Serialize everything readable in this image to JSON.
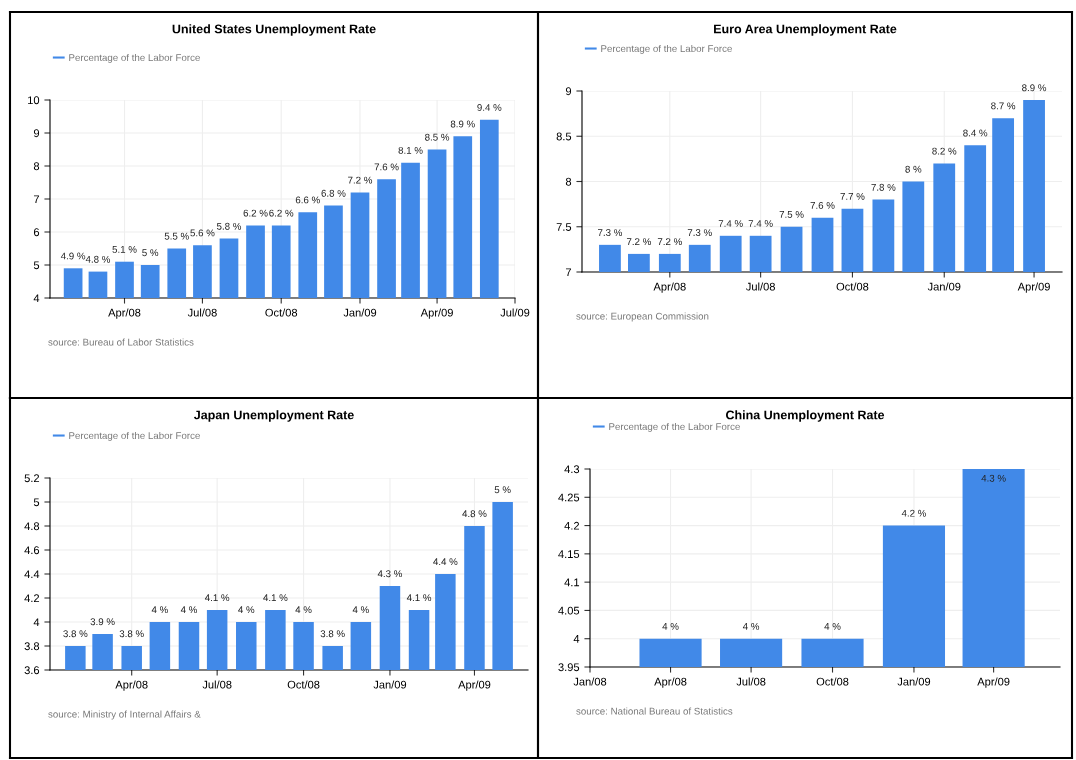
{
  "chart_data": [
    {
      "type": "bar",
      "title": "United States Unemployment Rate",
      "x": [
        "2008-02",
        "2008-03",
        "2008-04",
        "2008-05",
        "2008-06",
        "2008-07",
        "2008-08",
        "2008-09",
        "2008-10",
        "2008-11",
        "2008-12",
        "2009-01",
        "2009-02",
        "2009-03",
        "2009-04",
        "2009-05",
        "2009-06"
      ],
      "series": [
        {
          "name": "Percentage of the Labor Force",
          "color": "#4189e8",
          "values": [
            4.9,
            4.8,
            5.1,
            5,
            5.5,
            5.6,
            5.8,
            6.2,
            6.2,
            6.6,
            6.8,
            7.2,
            7.6,
            8.1,
            8.5,
            8.9,
            9.4
          ],
          "value_labels": [
            "4.9 %",
            "4.8 %",
            "5.1 %",
            "5 %",
            "5.5 %",
            "5.6 %",
            "5.8 %",
            "6.2 %",
            "6.2 %",
            "6.6 %",
            "6.8 %",
            "7.2 %",
            "7.6 %",
            "8.1 %",
            "8.5 %",
            "8.9 %",
            "9.4 %"
          ]
        }
      ],
      "xlim": [
        "2008-01-05",
        "2009-07-01"
      ],
      "xticks": [
        {
          "value": "2008-04",
          "label": "Apr/08"
        },
        {
          "value": "2008-07",
          "label": "Jul/08"
        },
        {
          "value": "2008-10",
          "label": "Oct/08"
        },
        {
          "value": "2009-01",
          "label": "Jan/09"
        },
        {
          "value": "2009-04",
          "label": "Apr/09"
        },
        {
          "value": "2009-07",
          "label": "Jul/09"
        }
      ],
      "ylim": [
        4,
        10
      ],
      "yticks": [
        4,
        5,
        6,
        7,
        8,
        9,
        10
      ],
      "grid": true,
      "legend": "top left",
      "annotations": [
        "source: Bureau of Labor Statistics"
      ]
    },
    {
      "type": "bar",
      "title": "Euro Area Unemployment Rate",
      "x": [
        "2008-02",
        "2008-03",
        "2008-04",
        "2008-05",
        "2008-06",
        "2008-07",
        "2008-08",
        "2008-09",
        "2008-10",
        "2008-11",
        "2008-12",
        "2009-01",
        "2009-02",
        "2009-03",
        "2009-04"
      ],
      "series": [
        {
          "name": "Percentage of the Labor Force",
          "color": "#4189e8",
          "values": [
            7.3,
            7.2,
            7.2,
            7.3,
            7.4,
            7.4,
            7.5,
            7.6,
            7.7,
            7.8,
            8,
            8.2,
            8.4,
            8.7,
            8.9
          ],
          "value_labels": [
            "7.3 %",
            "7.2 %",
            "7.2 %",
            "7.3 %",
            "7.4 %",
            "7.4 %",
            "7.5 %",
            "7.6 %",
            "7.7 %",
            "7.8 %",
            "8 %",
            "8.2 %",
            "8.4 %",
            "8.7 %",
            "8.9 %"
          ]
        }
      ],
      "xlim": [
        "2008-01-04",
        "2009-04-29"
      ],
      "xticks": [
        {
          "value": "2008-04",
          "label": "Apr/08"
        },
        {
          "value": "2008-07",
          "label": "Jul/08"
        },
        {
          "value": "2008-10",
          "label": "Oct/08"
        },
        {
          "value": "2009-01",
          "label": "Jan/09"
        },
        {
          "value": "2009-04",
          "label": "Apr/09"
        }
      ],
      "ylim": [
        7,
        9
      ],
      "yticks": [
        7,
        7.5,
        8,
        8.5,
        9
      ],
      "grid": true,
      "legend": "top left",
      "annotations": [
        "source: European Commission"
      ]
    },
    {
      "type": "bar",
      "title": "Japan Unemployment Rate",
      "x": [
        "2008-02",
        "2008-03",
        "2008-04",
        "2008-05",
        "2008-06",
        "2008-07",
        "2008-08",
        "2008-09",
        "2008-10",
        "2008-11",
        "2008-12",
        "2009-01",
        "2009-02",
        "2009-03",
        "2009-04",
        "2009-05"
      ],
      "series": [
        {
          "name": "Percentage of the Labor Force",
          "color": "#4189e8",
          "values": [
            3.8,
            3.9,
            3.8,
            4,
            4,
            4.1,
            4,
            4.1,
            4,
            3.8,
            4,
            4.3,
            4.1,
            4.4,
            4.8,
            5
          ],
          "value_labels": [
            "3.8 %",
            "3.9 %",
            "3.8 %",
            "4 %",
            "4 %",
            "4.1 %",
            "4 %",
            "4.1 %",
            "4 %",
            "3.8 %",
            "4 %",
            "4.3 %",
            "4.1 %",
            "4.4 %",
            "4.8 %",
            "5 %"
          ]
        }
      ],
      "xlim": [
        "2008-01-05",
        "2009-05-28"
      ],
      "xticks": [
        {
          "value": "2008-04",
          "label": "Apr/08"
        },
        {
          "value": "2008-07",
          "label": "Jul/08"
        },
        {
          "value": "2008-10",
          "label": "Oct/08"
        },
        {
          "value": "2009-01",
          "label": "Jan/09"
        },
        {
          "value": "2009-04",
          "label": "Apr/09"
        }
      ],
      "ylim": [
        3.6,
        5.2
      ],
      "yticks": [
        3.6,
        3.8,
        4,
        4.2,
        4.4,
        4.6,
        4.8,
        5,
        5.2
      ],
      "grid": true,
      "legend": "top left",
      "annotations": [
        "source: Ministry of Internal Affairs &"
      ]
    },
    {
      "type": "bar",
      "title": "China Unemployment Rate",
      "x": [
        "2008-04",
        "2008-07",
        "2008-10",
        "2009-01",
        "2009-04"
      ],
      "series": [
        {
          "name": "Percentage of the Labor Force",
          "color": "#4189e8",
          "values": [
            4,
            4,
            4,
            4.2,
            4.3
          ],
          "value_labels": [
            "4 %",
            "4 %",
            "4 %",
            "4.2 %",
            "4.3 %"
          ]
        }
      ],
      "xlim": [
        "2008-01-01",
        "2009-06-15"
      ],
      "xticks": [
        {
          "value": "2008-01",
          "label": "Jan/08"
        },
        {
          "value": "2008-04",
          "label": "Apr/08"
        },
        {
          "value": "2008-07",
          "label": "Jul/08"
        },
        {
          "value": "2008-10",
          "label": "Oct/08"
        },
        {
          "value": "2009-01",
          "label": "Jan/09"
        },
        {
          "value": "2009-04",
          "label": "Apr/09"
        }
      ],
      "ylim": [
        3.95,
        4.3
      ],
      "yticks": [
        3.95,
        4,
        4.05,
        4.1,
        4.15,
        4.2,
        4.25,
        4.3
      ],
      "grid": true,
      "legend": "top left",
      "annotations": [
        "source: National Bureau of Statistics"
      ]
    }
  ]
}
